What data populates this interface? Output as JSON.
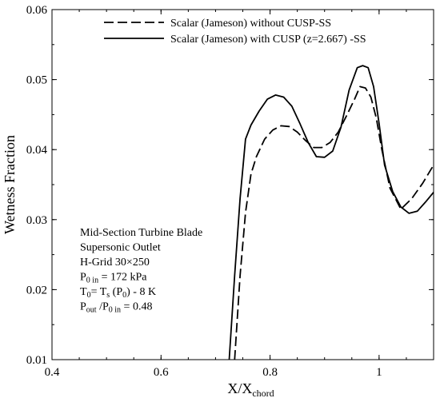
{
  "chart_data": {
    "type": "line",
    "title": "",
    "xlabel": {
      "main": "X/X",
      "sub": "chord"
    },
    "ylabel": "Wetness Fraction",
    "xlim": [
      0.4,
      1.1
    ],
    "ylim": [
      0.01,
      0.06
    ],
    "xticks": [
      0.4,
      0.6,
      0.8,
      1.0
    ],
    "xtick_labels": [
      "0.4",
      "0.6",
      "0.8",
      "1"
    ],
    "yticks": [
      0.01,
      0.02,
      0.03,
      0.04,
      0.05,
      0.06
    ],
    "ytick_labels": [
      "0.01",
      "0.02",
      "0.03",
      "0.04",
      "0.05",
      "0.06"
    ],
    "grid": false,
    "legend_position": "top-right",
    "series": [
      {
        "name": "Scalar (Jameson) without CUSP-SS",
        "style": "dashed",
        "color": "#000000",
        "x": [
          0.735,
          0.745,
          0.755,
          0.765,
          0.775,
          0.79,
          0.805,
          0.82,
          0.835,
          0.85,
          0.865,
          0.88,
          0.895,
          0.91,
          0.925,
          0.94,
          0.955,
          0.965,
          0.975,
          0.985,
          0.995,
          1.005,
          1.02,
          1.04,
          1.06,
          1.08,
          1.1
        ],
        "y": [
          0.01,
          0.022,
          0.031,
          0.0365,
          0.039,
          0.0415,
          0.0428,
          0.0434,
          0.0433,
          0.0425,
          0.0413,
          0.0403,
          0.0403,
          0.041,
          0.0425,
          0.0448,
          0.0472,
          0.049,
          0.0488,
          0.0475,
          0.0445,
          0.04,
          0.0345,
          0.0315,
          0.033,
          0.0352,
          0.0378
        ]
      },
      {
        "name": "Scalar (Jameson) with CUSP (z=2.667) -SS",
        "style": "solid",
        "color": "#000000",
        "x": [
          0.725,
          0.735,
          0.745,
          0.755,
          0.765,
          0.78,
          0.795,
          0.81,
          0.825,
          0.84,
          0.855,
          0.87,
          0.885,
          0.9,
          0.915,
          0.93,
          0.945,
          0.96,
          0.97,
          0.98,
          0.99,
          1.0,
          1.01,
          1.025,
          1.04,
          1.055,
          1.07,
          1.085,
          1.1
        ],
        "y": [
          0.01,
          0.022,
          0.033,
          0.0415,
          0.0435,
          0.0455,
          0.0472,
          0.0478,
          0.0475,
          0.0462,
          0.0437,
          0.041,
          0.039,
          0.0389,
          0.0398,
          0.0432,
          0.0485,
          0.0517,
          0.052,
          0.0517,
          0.049,
          0.0437,
          0.0378,
          0.034,
          0.0318,
          0.0309,
          0.0312,
          0.0325,
          0.0339
        ]
      }
    ],
    "annotation": {
      "lines": [
        {
          "parts": [
            {
              "t": "Mid-Section Turbine Blade"
            }
          ]
        },
        {
          "parts": [
            {
              "t": "Supersonic Outlet"
            }
          ]
        },
        {
          "parts": [
            {
              "t": "H-Grid 30×250"
            }
          ]
        },
        {
          "parts": [
            {
              "t": "P"
            },
            {
              "t": "0 in",
              "sub": true
            },
            {
              "t": " = 172 kPa"
            }
          ]
        },
        {
          "parts": [
            {
              "t": "T"
            },
            {
              "t": "0",
              "sub": true
            },
            {
              "t": "= T"
            },
            {
              "t": "s",
              "sub": true
            },
            {
              "t": " (P"
            },
            {
              "t": "0",
              "sub": true
            },
            {
              "t": ") - 8 K"
            }
          ]
        },
        {
          "parts": [
            {
              "t": "P"
            },
            {
              "t": "out",
              "sub": true
            },
            {
              "t": " /P"
            },
            {
              "t": "0 in",
              "sub": true
            },
            {
              "t": " = 0.48"
            }
          ]
        }
      ]
    }
  }
}
